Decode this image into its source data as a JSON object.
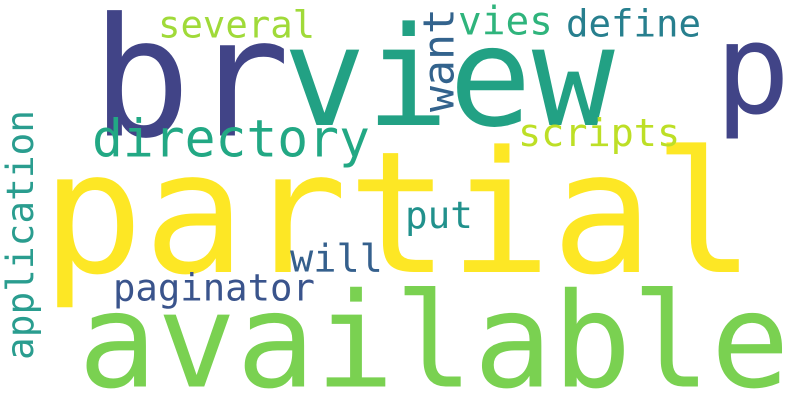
{
  "words": [
    {
      "text": "partial",
      "color": "#fde725"
    },
    {
      "text": "available",
      "color": "#7ad151"
    },
    {
      "text": "view",
      "color": "#22a184"
    },
    {
      "text": "br",
      "color": "#414487"
    },
    {
      "text": "p",
      "color": "#414487"
    },
    {
      "text": "directory",
      "color": "#22a884"
    },
    {
      "text": "scripts",
      "color": "#bddf26"
    },
    {
      "text": "application",
      "color": "#2a9d8f"
    },
    {
      "text": "several",
      "color": "#a0da39"
    },
    {
      "text": "define",
      "color": "#277f8e"
    },
    {
      "text": "vies",
      "color": "#2fb47c"
    },
    {
      "text": "want",
      "color": "#33638d"
    },
    {
      "text": "put",
      "color": "#21918c"
    },
    {
      "text": "will",
      "color": "#35608d"
    },
    {
      "text": "paginator",
      "color": "#3a548c"
    }
  ]
}
